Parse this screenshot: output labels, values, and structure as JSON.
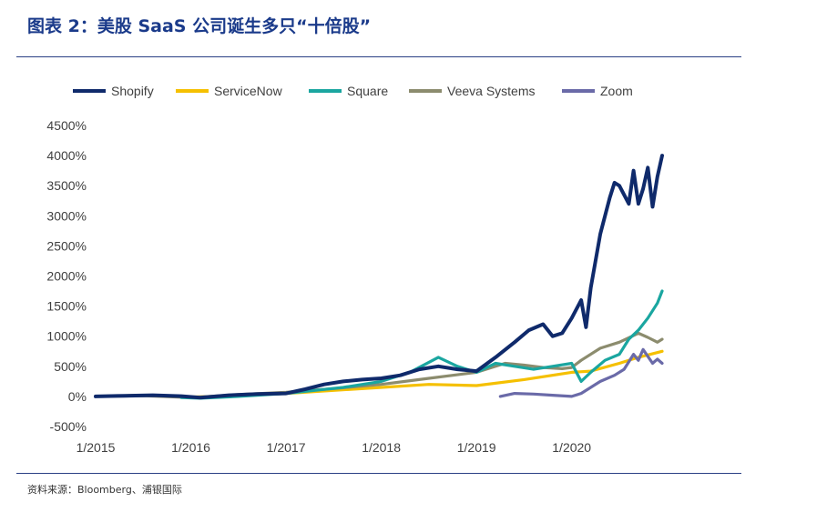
{
  "figure": {
    "title": "图表 2：美股 SaaS 公司诞生多只“十倍股”",
    "source": "资料来源：Bloomberg、浦银国际"
  },
  "chart_data": {
    "type": "line",
    "ylim": [
      -500,
      4500
    ],
    "yticks": [
      -500,
      0,
      500,
      1000,
      1500,
      2000,
      2500,
      3000,
      3500,
      4000,
      4500
    ],
    "ytick_labels": [
      "-500%",
      "0%",
      "500%",
      "1000%",
      "1500%",
      "2000%",
      "2500%",
      "3000%",
      "3500%",
      "4000%",
      "4500%"
    ],
    "xlim": [
      2015.0,
      2020.95
    ],
    "xticks": [
      2015,
      2016,
      2017,
      2018,
      2019,
      2020
    ],
    "xtick_labels": [
      "1/2015",
      "1/2016",
      "1/2017",
      "1/2018",
      "1/2019",
      "1/2020"
    ],
    "grid": false,
    "legend_position": "top",
    "series": [
      {
        "name": "Shopify",
        "color": "#0f2a6b",
        "x": [
          2015.0,
          2015.3,
          2015.6,
          2015.9,
          2016.1,
          2016.4,
          2016.7,
          2017.0,
          2017.2,
          2017.4,
          2017.6,
          2017.8,
          2018.0,
          2018.2,
          2018.4,
          2018.6,
          2018.8,
          2019.0,
          2019.2,
          2019.4,
          2019.55,
          2019.7,
          2019.8,
          2019.9,
          2020.0,
          2020.1,
          2020.15,
          2020.2,
          2020.3,
          2020.4,
          2020.45,
          2020.5,
          2020.6,
          2020.65,
          2020.7,
          2020.75,
          2020.8,
          2020.85,
          2020.9,
          2020.95
        ],
        "y": [
          0,
          10,
          20,
          5,
          -20,
          20,
          40,
          50,
          120,
          200,
          250,
          280,
          300,
          350,
          450,
          500,
          450,
          420,
          650,
          900,
          1100,
          1200,
          1000,
          1050,
          1300,
          1600,
          1150,
          1800,
          2700,
          3300,
          3550,
          3500,
          3200,
          3750,
          3200,
          3450,
          3800,
          3150,
          3650,
          4000
        ]
      },
      {
        "name": "ServiceNow",
        "color": "#f5c000",
        "x": [
          2015.0,
          2015.5,
          2016.0,
          2016.5,
          2017.0,
          2017.5,
          2018.0,
          2018.5,
          2019.0,
          2019.5,
          2020.0,
          2020.2,
          2020.5,
          2020.7,
          2020.95
        ],
        "y": [
          0,
          20,
          -10,
          10,
          50,
          100,
          150,
          200,
          180,
          280,
          400,
          420,
          550,
          650,
          750
        ]
      },
      {
        "name": "Square",
        "color": "#1aa6a0",
        "x": [
          2015.9,
          2016.1,
          2016.5,
          2017.0,
          2017.3,
          2017.6,
          2018.0,
          2018.3,
          2018.6,
          2018.8,
          2019.0,
          2019.2,
          2019.4,
          2019.6,
          2019.8,
          2020.0,
          2020.1,
          2020.2,
          2020.35,
          2020.5,
          2020.6,
          2020.7,
          2020.8,
          2020.9,
          2020.95
        ],
        "y": [
          -20,
          -30,
          0,
          50,
          100,
          150,
          250,
          400,
          650,
          500,
          400,
          550,
          500,
          450,
          500,
          550,
          250,
          400,
          600,
          700,
          950,
          1100,
          1300,
          1550,
          1750
        ]
      },
      {
        "name": "Veeva Systems",
        "color": "#8c8c6e",
        "x": [
          2015.0,
          2015.5,
          2016.0,
          2016.5,
          2017.0,
          2017.5,
          2018.0,
          2018.5,
          2019.0,
          2019.3,
          2019.5,
          2019.7,
          2019.9,
          2020.0,
          2020.1,
          2020.3,
          2020.5,
          2020.7,
          2020.8,
          2020.9,
          2020.95
        ],
        "y": [
          0,
          10,
          -20,
          30,
          70,
          130,
          200,
          300,
          400,
          550,
          520,
          480,
          460,
          480,
          600,
          800,
          900,
          1050,
          980,
          900,
          950
        ]
      },
      {
        "name": "Zoom",
        "color": "#6a6aa8",
        "x": [
          2019.25,
          2019.4,
          2019.6,
          2019.8,
          2020.0,
          2020.1,
          2020.2,
          2020.3,
          2020.45,
          2020.55,
          2020.65,
          2020.7,
          2020.75,
          2020.85,
          2020.9,
          2020.95
        ],
        "y": [
          0,
          50,
          40,
          20,
          0,
          50,
          150,
          250,
          350,
          450,
          700,
          600,
          780,
          550,
          620,
          550
        ]
      }
    ]
  }
}
